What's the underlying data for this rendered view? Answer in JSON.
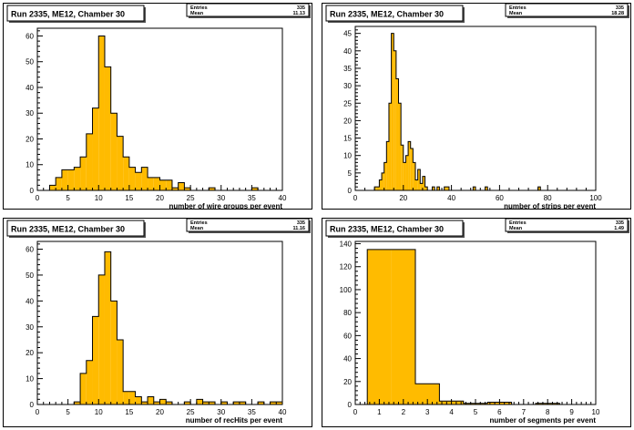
{
  "chart_data": [
    {
      "type": "bar",
      "title": "Run 2335, ME12, Chamber 30",
      "xlabel": "number of wire groups per event",
      "ylabel": "",
      "stats": [
        {
          "label": "Entries",
          "value": "335"
        },
        {
          "label": "Mean",
          "value": "11.13"
        }
      ],
      "xlim": [
        0,
        40
      ],
      "ylim": [
        0,
        63
      ],
      "xticks": [
        0,
        5,
        10,
        15,
        20,
        25,
        30,
        35,
        40
      ],
      "yticks": [
        0,
        10,
        20,
        30,
        40,
        50,
        60
      ],
      "bin_width": 1,
      "bin_edges": [
        2,
        3,
        4,
        5,
        6,
        7,
        8,
        9,
        10,
        11,
        12,
        13,
        14,
        15,
        16,
        17,
        18,
        19,
        20,
        21,
        22,
        23,
        24,
        25,
        26,
        27,
        28,
        29,
        30,
        31,
        32,
        33,
        34,
        35,
        36,
        37,
        38
      ],
      "values": [
        2,
        5,
        8,
        8,
        9,
        13,
        22,
        32,
        60,
        48,
        30,
        21,
        13,
        9,
        7,
        9,
        5,
        5,
        4,
        4,
        1,
        3,
        1,
        0,
        0,
        0,
        1,
        0,
        0,
        0,
        0,
        0,
        0,
        1,
        0,
        0
      ],
      "fill": "#ffbb00"
    },
    {
      "type": "bar",
      "title": "Run 2335, ME12, Chamber 30",
      "xlabel": "number of strips per event",
      "ylabel": "",
      "stats": [
        {
          "label": "Entries",
          "value": "335"
        },
        {
          "label": "Mean",
          "value": "18.28"
        }
      ],
      "xlim": [
        0,
        100
      ],
      "ylim": [
        0,
        47
      ],
      "xticks": [
        0,
        20,
        40,
        60,
        80,
        100
      ],
      "yticks": [
        0,
        5,
        10,
        15,
        20,
        25,
        30,
        35,
        40,
        45
      ],
      "bin_width": 1,
      "bin_edges": [
        8,
        9,
        10,
        11,
        12,
        13,
        14,
        15,
        16,
        17,
        18,
        19,
        20,
        21,
        22,
        23,
        24,
        25,
        26,
        27,
        28,
        29,
        30,
        31,
        32,
        33,
        34,
        35,
        36,
        37,
        38,
        39,
        40,
        41,
        42,
        43,
        44,
        45,
        46,
        47,
        48,
        49,
        50,
        51,
        52,
        53,
        54,
        55,
        56,
        57,
        58,
        59,
        60,
        61,
        62,
        63,
        64,
        65,
        66,
        67,
        68,
        69,
        70,
        71,
        72,
        73,
        74,
        75,
        76,
        77,
        78
      ],
      "values": [
        1,
        1,
        3,
        5,
        8,
        14,
        25,
        45,
        40,
        32,
        25,
        13,
        8,
        10,
        14,
        12,
        8,
        3,
        6,
        2,
        4,
        1,
        0,
        0,
        1,
        0,
        1,
        0,
        0,
        1,
        1,
        0,
        0,
        0,
        0,
        0,
        0,
        0,
        0,
        0,
        0,
        1,
        0,
        0,
        0,
        0,
        1,
        0,
        0,
        0,
        0,
        0,
        0,
        0,
        0,
        0,
        0,
        0,
        0,
        0,
        0,
        0,
        0,
        0,
        0,
        0,
        0,
        0,
        1,
        0
      ],
      "fill": "#ffbb00"
    },
    {
      "type": "bar",
      "title": "Run 2335, ME12, Chamber 30",
      "xlabel": "number of recHits per event",
      "ylabel": "",
      "stats": [
        {
          "label": "Entries",
          "value": "335"
        },
        {
          "label": "Mean",
          "value": "11.16"
        }
      ],
      "xlim": [
        0,
        40
      ],
      "ylim": [
        0,
        63
      ],
      "xticks": [
        0,
        5,
        10,
        15,
        20,
        25,
        30,
        35,
        40
      ],
      "yticks": [
        0,
        10,
        20,
        30,
        40,
        50,
        60
      ],
      "bin_width": 1,
      "bin_edges": [
        6,
        7,
        8,
        9,
        10,
        11,
        12,
        13,
        14,
        15,
        16,
        17,
        18,
        19,
        20,
        21,
        22,
        23,
        24,
        25,
        26,
        27,
        28,
        29,
        30,
        31,
        32,
        33,
        34,
        35,
        36,
        37,
        38,
        39,
        40
      ],
      "values": [
        1,
        12,
        17,
        34,
        50,
        59,
        40,
        25,
        5,
        5,
        3,
        1,
        3,
        1,
        2,
        1,
        0,
        0,
        1,
        0,
        2,
        1,
        1,
        0,
        1,
        0,
        1,
        1,
        0,
        0,
        1,
        0,
        1,
        1
      ],
      "fill": "#ffbb00"
    },
    {
      "type": "bar",
      "title": "Run 2335, ME12, Chamber 30",
      "xlabel": "number of segments per event",
      "ylabel": "",
      "stats": [
        {
          "label": "Entries",
          "value": "335"
        },
        {
          "label": "Mean",
          "value": "1.49"
        }
      ],
      "xlim": [
        0,
        10
      ],
      "ylim": [
        0,
        142
      ],
      "xticks": [
        0,
        1,
        2,
        3,
        4,
        5,
        6,
        7,
        8,
        9,
        10
      ],
      "yticks": [
        0,
        20,
        40,
        60,
        80,
        100,
        120,
        140
      ],
      "bin_width": 1,
      "bin_edges": [
        0.5,
        1.5,
        2.5,
        3.5,
        4.5,
        5.5,
        6.5,
        7.5,
        8.5,
        9.5
      ],
      "values": [
        135,
        135,
        18,
        3,
        1,
        2,
        0,
        1,
        0
      ],
      "fill": "#ffbb00"
    }
  ]
}
